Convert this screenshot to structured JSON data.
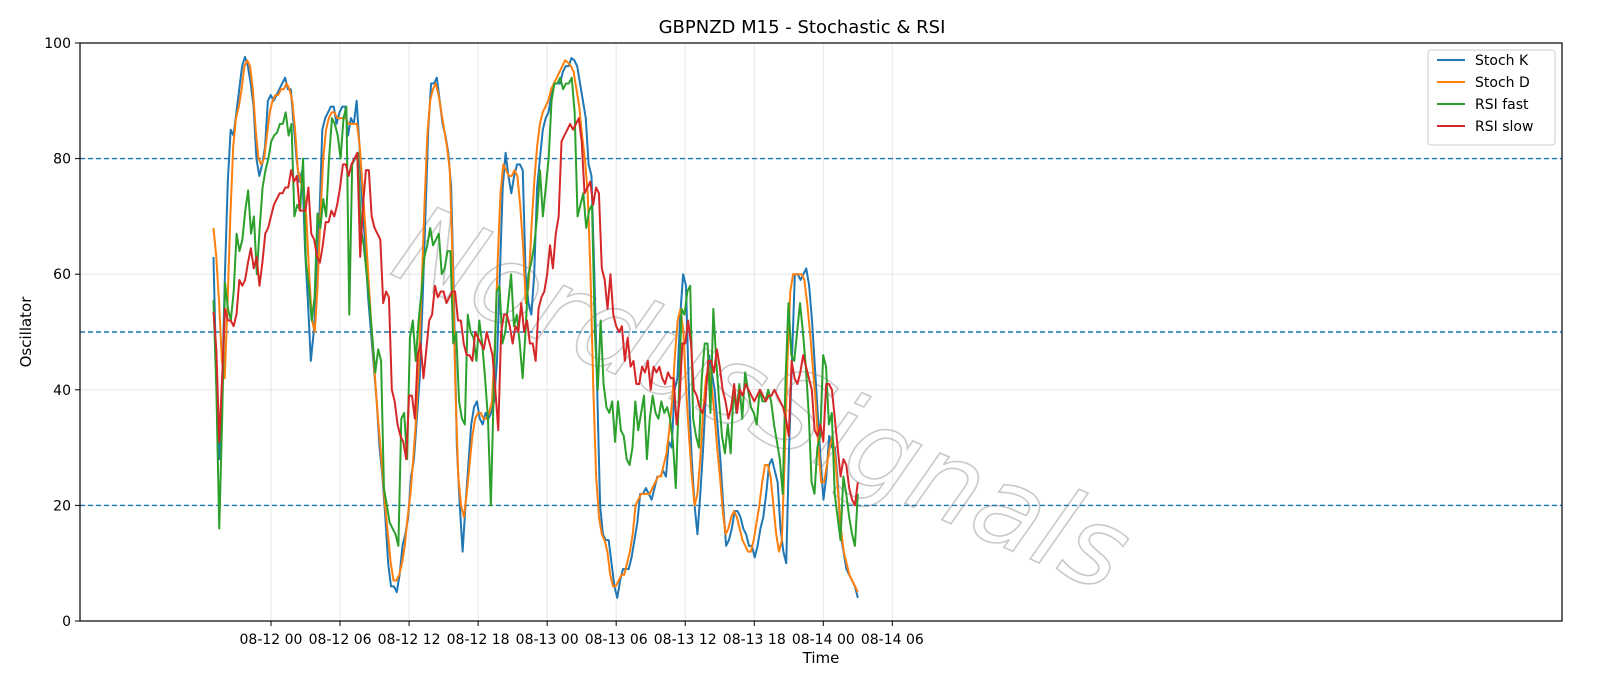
{
  "chart_data": {
    "type": "line",
    "title": "GBPNZD M15 - Stochastic & RSI",
    "xlabel": "Time",
    "ylabel": "Oscillator",
    "ylim": [
      0,
      100
    ],
    "yticks": [
      0,
      20,
      40,
      60,
      80,
      100
    ],
    "xlim_hours": [
      -16.6,
      112.2
    ],
    "xticks": [
      {
        "label": "08-12 00",
        "hour": 0
      },
      {
        "label": "08-12 06",
        "hour": 6
      },
      {
        "label": "08-12 12",
        "hour": 12
      },
      {
        "label": "08-12 18",
        "hour": 18
      },
      {
        "label": "08-13 00",
        "hour": 24
      },
      {
        "label": "08-13 06",
        "hour": 30
      },
      {
        "label": "08-13 12",
        "hour": 36
      },
      {
        "label": "08-13 18",
        "hour": 42
      },
      {
        "label": "08-14 00",
        "hour": 48
      },
      {
        "label": "08-14 06",
        "hour": 54
      }
    ],
    "x_start": "08-11 19:00",
    "x_end": "08-14 03:00",
    "reference_lines": [
      80,
      50,
      20
    ],
    "grid": true,
    "legend_position": "top-right",
    "watermark": "NordusSignals",
    "series": [
      {
        "name": "Stoch K",
        "color": "#1f77b4",
        "values": [
          63,
          42,
          28,
          40,
          60,
          76,
          85,
          84,
          88,
          92,
          96,
          97.6,
          96,
          93,
          89,
          80,
          77,
          79,
          82,
          90,
          91,
          90,
          91,
          92,
          93,
          94,
          92,
          92,
          86,
          80,
          76,
          78,
          64,
          55,
          45,
          50,
          58,
          70,
          85,
          87,
          88,
          89,
          89,
          86,
          88,
          89,
          89,
          84,
          87,
          86,
          90,
          82,
          72,
          65,
          56,
          50,
          44,
          38,
          30,
          25,
          18,
          10,
          6,
          6,
          5,
          8,
          13,
          15,
          18,
          25,
          28,
          35,
          42,
          55,
          70,
          85,
          93,
          93,
          94,
          90,
          86,
          84,
          81,
          75,
          55,
          30,
          20,
          12,
          20,
          27,
          34,
          37,
          38,
          35,
          34,
          36,
          35,
          36,
          38,
          45,
          60,
          75,
          81,
          77,
          74,
          77,
          79,
          79,
          78,
          60,
          55,
          53,
          60,
          75,
          80,
          85,
          87,
          88,
          91,
          93,
          93,
          93,
          95,
          96,
          96,
          97.4,
          97,
          96,
          93,
          90,
          87,
          79,
          77,
          60,
          40,
          20,
          15,
          14,
          14,
          10,
          6,
          4,
          7,
          9,
          9,
          9,
          11,
          14,
          17,
          22,
          22,
          23,
          22,
          21,
          23,
          25,
          25,
          26,
          25,
          31,
          30,
          40,
          42,
          53,
          60,
          58,
          40,
          28,
          20,
          15,
          22,
          30,
          40,
          46,
          43,
          40,
          34,
          28,
          20,
          13,
          14,
          16,
          19,
          19,
          18,
          16,
          15,
          13,
          13,
          11,
          13,
          16,
          18,
          22,
          27,
          28,
          26,
          24,
          16,
          12,
          10,
          30,
          45,
          60,
          60,
          59,
          60,
          61,
          58,
          52,
          44,
          36,
          28,
          21,
          25,
          32,
          30,
          30,
          24,
          15,
          12,
          9,
          8,
          7,
          6,
          4
        ]
      },
      {
        "name": "Stoch D",
        "color": "#ff7f0e",
        "values": [
          68,
          63,
          55,
          45,
          42,
          55,
          70,
          82,
          87,
          89,
          92,
          96,
          97,
          96,
          92,
          85,
          80,
          79,
          80,
          84,
          88,
          90,
          91,
          91,
          92,
          92,
          93,
          92,
          90,
          85,
          78,
          76,
          75,
          70,
          60,
          52,
          50,
          58,
          70,
          80,
          85,
          87,
          88,
          88,
          87,
          87,
          87,
          87,
          86,
          86,
          86,
          86,
          82,
          75,
          68,
          60,
          52,
          45,
          38,
          32,
          26,
          20,
          15,
          10,
          7,
          7,
          8,
          10,
          13,
          18,
          22,
          28,
          35,
          45,
          58,
          72,
          84,
          90,
          92,
          93,
          91,
          88,
          85,
          82,
          78,
          62,
          40,
          25,
          20,
          18,
          22,
          27,
          32,
          35,
          36,
          36,
          35,
          35,
          36,
          38,
          48,
          62,
          74,
          79,
          78,
          77,
          77,
          78,
          77,
          72,
          65,
          55,
          58,
          68,
          76,
          82,
          86,
          88,
          89,
          90,
          92,
          93,
          94,
          95,
          96,
          97,
          96.6,
          96,
          95,
          92,
          89,
          84,
          80,
          74,
          60,
          40,
          25,
          18,
          15,
          14,
          12,
          8,
          6,
          6,
          7,
          8,
          8,
          10,
          12,
          15,
          20,
          21,
          22,
          22,
          22,
          22,
          23,
          24,
          25,
          25,
          27,
          29,
          33,
          38,
          46,
          52,
          54,
          50,
          40,
          32,
          25,
          20,
          22,
          28,
          36,
          42,
          44,
          41,
          36,
          30,
          25,
          19,
          15,
          16,
          18,
          19,
          18,
          16,
          14,
          13,
          12,
          12,
          14,
          17,
          20,
          24,
          27,
          27,
          25,
          20,
          15,
          12,
          14,
          28,
          45,
          57,
          60,
          60,
          60,
          60,
          59,
          55,
          50,
          44,
          38,
          30,
          24,
          24,
          27,
          30,
          32,
          28,
          22,
          16,
          12,
          10,
          8,
          7,
          6,
          5
        ]
      },
      {
        "name": "RSI fast",
        "color": "#2ca02c",
        "values": [
          55.5,
          40,
          16,
          35,
          58.5,
          54,
          52,
          57,
          67,
          64,
          66,
          71,
          74.5,
          67,
          70,
          60,
          68,
          75,
          78,
          80,
          83,
          84,
          84.5,
          86,
          86,
          88,
          84,
          86,
          70,
          72,
          71,
          80,
          62,
          58,
          52,
          56,
          70.5,
          68,
          73,
          70,
          80,
          87,
          86,
          84,
          80,
          87,
          89,
          53,
          79,
          80,
          81,
          68,
          65,
          60,
          55,
          49,
          43,
          47,
          45,
          23,
          20,
          17,
          16,
          15,
          13,
          35,
          36,
          28,
          49,
          52,
          45,
          52,
          57,
          63,
          65,
          68,
          65,
          66,
          67,
          60,
          61,
          64,
          64,
          48,
          50,
          38,
          35,
          34,
          53,
          50,
          49,
          45,
          52,
          48,
          42,
          35,
          20,
          40,
          57,
          58,
          48,
          50,
          55,
          60,
          51,
          53,
          48,
          42,
          50,
          60,
          62,
          65,
          70,
          78,
          70,
          75,
          80,
          90,
          93,
          93,
          94,
          92,
          93,
          93,
          94,
          88,
          70,
          72,
          74,
          68,
          71,
          72,
          50,
          40,
          52,
          41,
          37,
          36,
          38,
          31,
          38,
          33,
          32,
          28,
          27,
          30,
          38,
          33,
          36,
          39,
          28,
          35,
          39,
          36,
          35,
          38,
          36,
          37,
          35,
          31,
          23,
          38,
          54,
          53,
          57,
          58,
          35,
          32,
          30,
          42,
          48,
          48,
          36,
          54,
          45,
          38,
          32,
          29,
          34,
          29,
          40,
          36,
          41,
          35,
          43,
          40,
          37,
          36,
          34,
          40,
          38,
          38,
          40,
          38,
          34,
          31,
          28,
          22,
          42,
          55,
          46,
          45,
          50,
          55,
          50,
          44,
          36,
          24,
          22,
          30,
          32,
          46,
          44,
          34,
          36,
          22,
          18,
          14,
          25,
          22,
          18,
          15,
          13,
          22
        ]
      },
      {
        "name": "RSI slow",
        "color": "#d62728",
        "values": [
          53.5,
          47,
          31,
          42,
          54,
          52,
          52,
          51,
          53,
          59,
          58,
          59,
          62,
          64.5,
          61,
          63,
          58,
          62,
          67,
          68,
          70,
          72,
          73,
          74,
          74,
          75,
          75,
          78,
          76,
          77,
          71,
          71,
          71,
          75,
          67,
          66,
          63,
          62,
          65,
          69,
          69,
          71,
          70,
          72,
          75,
          79,
          79,
          77,
          79,
          80,
          81,
          63,
          72,
          78,
          78,
          70,
          68,
          67,
          66,
          55,
          57,
          56,
          40,
          38,
          34,
          32,
          31,
          28,
          39,
          39,
          35,
          46,
          48,
          42,
          47,
          52,
          53,
          58,
          56,
          57,
          57,
          55,
          56,
          57,
          57,
          52,
          52,
          48,
          46,
          46,
          45,
          50,
          49,
          48,
          47,
          50,
          48,
          46,
          40,
          33,
          50,
          53,
          53,
          51,
          48,
          51,
          50,
          55,
          50,
          52,
          48,
          48,
          45,
          54,
          56,
          57,
          60,
          65,
          61,
          67,
          70,
          83,
          84,
          85,
          86,
          85,
          86,
          87,
          83,
          74,
          75,
          76,
          72,
          75,
          74,
          61,
          59,
          54,
          60,
          53,
          51,
          50,
          51,
          45,
          49,
          44,
          45,
          41,
          41,
          44,
          43,
          45,
          40,
          44,
          43,
          44,
          42,
          41,
          43,
          42,
          42,
          34,
          38,
          48,
          48,
          52,
          48,
          40,
          39,
          37,
          36,
          38,
          45,
          45,
          43,
          47,
          44,
          40,
          38,
          35,
          37,
          41,
          36,
          40,
          39,
          41,
          40,
          39,
          38,
          39,
          40,
          39,
          38,
          39,
          39,
          40,
          39,
          38,
          37,
          35,
          32,
          45,
          42,
          41,
          43,
          46,
          44,
          42,
          40,
          33,
          32,
          34,
          31,
          41,
          41,
          40,
          35,
          30,
          25,
          28,
          27,
          23,
          21,
          20,
          24
        ]
      }
    ]
  }
}
